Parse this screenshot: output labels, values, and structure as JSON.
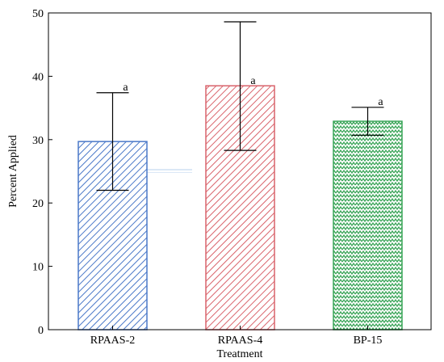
{
  "chart_data": {
    "type": "bar",
    "xlabel": "Treatment",
    "ylabel": "Percent Applied",
    "ylim": [
      0,
      50
    ],
    "yticks": [
      0,
      10,
      20,
      30,
      40,
      50
    ],
    "categories": [
      "RPAAS-2",
      "RPAAS-4",
      "BP-15"
    ],
    "values": [
      29.7,
      38.5,
      32.9
    ],
    "error_low": [
      22.0,
      28.3,
      30.7
    ],
    "error_high": [
      37.4,
      48.6,
      35.1
    ],
    "significance_letters": [
      "a",
      "a",
      "a"
    ],
    "colors": [
      "#4a78c8",
      "#d9636b",
      "#3aa558"
    ],
    "fill_patterns": [
      "diagonal-hatch",
      "diagonal-hatch",
      "zigzag"
    ],
    "grid": false
  }
}
